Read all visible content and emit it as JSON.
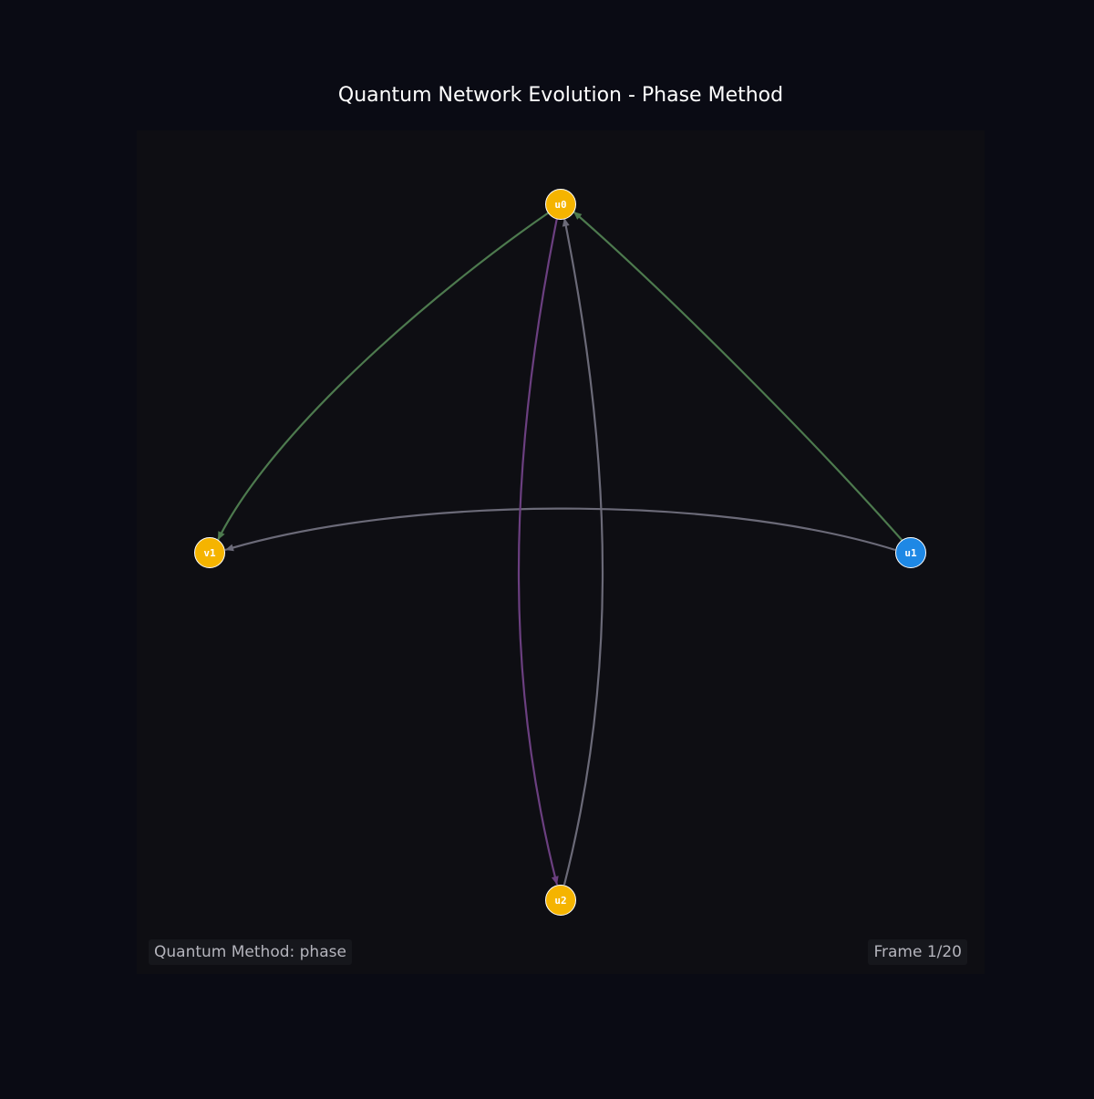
{
  "title": "Quantum Network Evolution - Phase Method",
  "colors": {
    "page_bg": "#0a0b14",
    "panel_bg": "#0e0e13",
    "node_gold": "#f5b400",
    "node_blue": "#1e88e5",
    "edge_green": "#4d7a4e",
    "edge_gray": "#6b6a78",
    "edge_purple": "#6b3f80"
  },
  "nodes": [
    {
      "id": "u0",
      "label": "u0",
      "color": "#f5b400"
    },
    {
      "id": "v1",
      "label": "v1",
      "color": "#f5b400"
    },
    {
      "id": "u1",
      "label": "u1",
      "color": "#1e88e5"
    },
    {
      "id": "u2",
      "label": "u2",
      "color": "#f5b400"
    }
  ],
  "edges": [
    {
      "from": "u0",
      "to": "v1",
      "color": "#4d7a4e"
    },
    {
      "from": "u1",
      "to": "u0",
      "color": "#4d7a4e"
    },
    {
      "from": "u1",
      "to": "v1",
      "color": "#6b6a78"
    },
    {
      "from": "u0",
      "to": "u2",
      "color": "#6b3f80"
    },
    {
      "from": "u2",
      "to": "u0",
      "color": "#6b6a78"
    }
  ],
  "footer": {
    "method_label": "Quantum Method: phase",
    "frame_label": "Frame 1/20"
  }
}
